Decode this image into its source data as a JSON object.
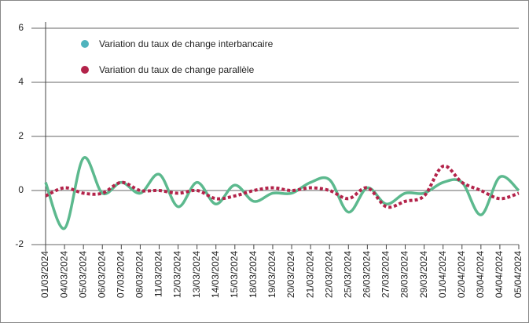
{
  "chart_data": {
    "type": "line",
    "categories": [
      "01/03/2024",
      "04/03/2024",
      "05/03/2024",
      "06/03/2024",
      "07/03/2024",
      "08/03/2024",
      "11/03/2024",
      "12/03/2024",
      "13/03/2024",
      "14/03/2024",
      "15/03/2024",
      "18/03/2024",
      "19/03/2024",
      "20/03/2024",
      "21/03/2024",
      "22/03/2024",
      "25/03/2024",
      "26/03/2024",
      "27/03/2024",
      "28/03/2024",
      "29/03/2024",
      "01/04/2024",
      "02/04/2024",
      "03/04/2024",
      "04/04/2024",
      "05/04/2024"
    ],
    "series": [
      {
        "name": "Variation du taux de change interbancaire",
        "color": "#5cb98e",
        "marker_color": "#4fb3bd",
        "dashed": false,
        "values": [
          0.3,
          -1.4,
          1.2,
          -0.1,
          0.3,
          -0.1,
          0.6,
          -0.6,
          0.3,
          -0.5,
          0.2,
          -0.4,
          -0.1,
          -0.1,
          0.3,
          0.4,
          -0.8,
          0.1,
          -0.5,
          -0.1,
          -0.1,
          0.3,
          0.3,
          -0.9,
          0.5,
          0.0
        ]
      },
      {
        "name": "Variation du taux de change parallèle",
        "color": "#b3234a",
        "marker_color": "#b3234a",
        "dashed": true,
        "values": [
          -0.2,
          0.1,
          -0.1,
          -0.1,
          0.3,
          0,
          0,
          -0.1,
          0,
          -0.3,
          -0.2,
          0,
          0.1,
          0,
          0.1,
          0,
          -0.3,
          0.1,
          -0.6,
          -0.4,
          -0.2,
          0.9,
          0.3,
          0,
          -0.3,
          -0.1
        ]
      }
    ],
    "ylim": [
      -2,
      6
    ],
    "yticks": [
      -2,
      0,
      2,
      4,
      6
    ],
    "grid": true,
    "legend": "upper left"
  }
}
